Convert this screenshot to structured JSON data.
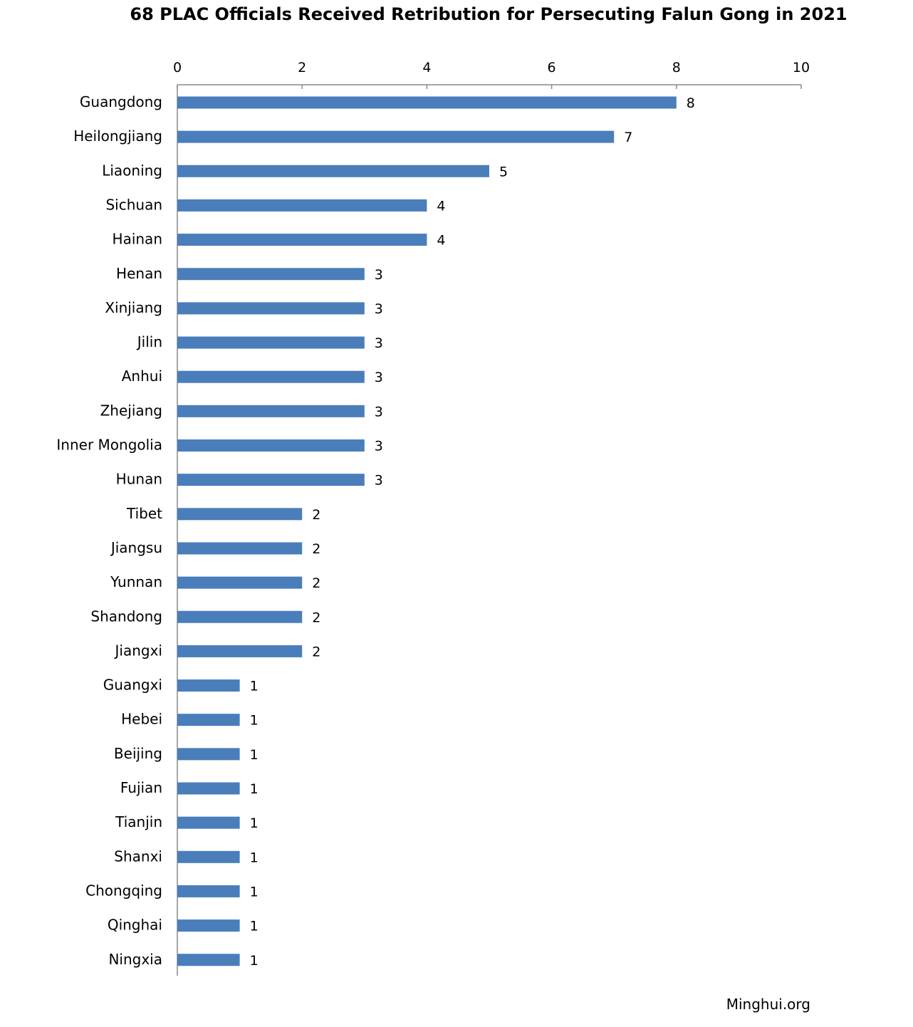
{
  "chart_data": {
    "type": "bar",
    "orientation": "horizontal",
    "title": "68 PLAC Officials Received Retribution for Persecuting Falun Gong in 2021",
    "xlabel": "",
    "ylabel": "",
    "xlim": [
      0,
      10
    ],
    "x_ticks": [
      0,
      2,
      4,
      6,
      8,
      10
    ],
    "x_axis_position": "top",
    "grid": false,
    "legend": "none",
    "bar_color": "#4a7ebb",
    "data_labels": true,
    "categories": [
      "Guangdong",
      "Heilongjiang",
      "Liaoning",
      "Sichuan",
      "Hainan",
      "Henan",
      "Xinjiang",
      "Jilin",
      "Anhui",
      "Zhejiang",
      "Inner Mongolia",
      "Hunan",
      "Tibet",
      "Jiangsu",
      "Yunnan",
      "Shandong",
      "Jiangxi",
      "Guangxi",
      "Hebei",
      "Beijing",
      "Fujian",
      "Tianjin",
      "Shanxi",
      "Chongqing",
      "Qinghai",
      "Ningxia"
    ],
    "values": [
      8,
      7,
      5,
      4,
      4,
      3,
      3,
      3,
      3,
      3,
      3,
      3,
      2,
      2,
      2,
      2,
      2,
      1,
      1,
      1,
      1,
      1,
      1,
      1,
      1,
      1
    ]
  },
  "source": "Minghui.org"
}
